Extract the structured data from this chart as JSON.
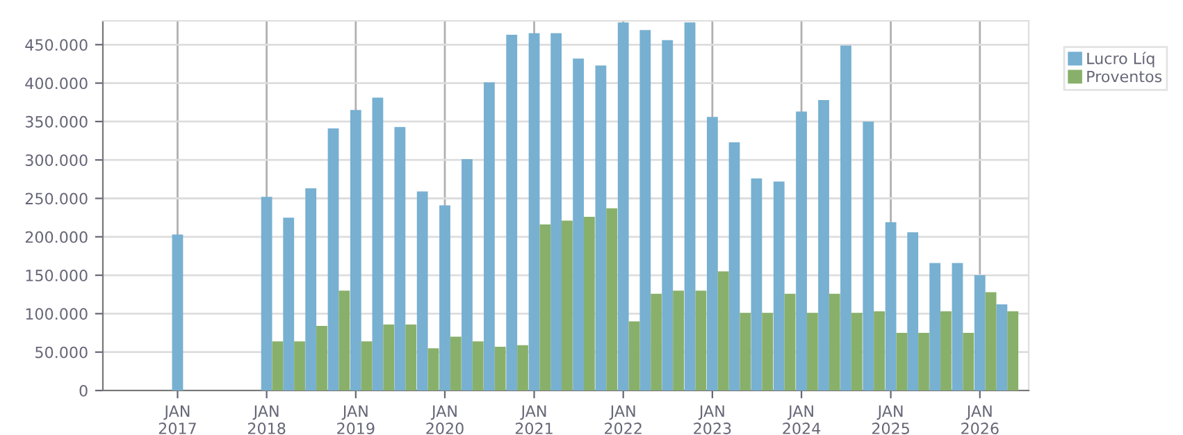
{
  "chart_data": {
    "type": "bar",
    "x": [
      "2017-01",
      "2018-01",
      "2018-04",
      "2018-07",
      "2018-10",
      "2019-01",
      "2019-04",
      "2019-07",
      "2019-10",
      "2020-01",
      "2020-04",
      "2020-07",
      "2020-10",
      "2021-01",
      "2021-04",
      "2021-07",
      "2021-10",
      "2022-01",
      "2022-04",
      "2022-07",
      "2022-10",
      "2023-01",
      "2023-04",
      "2023-07",
      "2023-10",
      "2024-01",
      "2024-04",
      "2024-07",
      "2024-10",
      "2025-01",
      "2025-04",
      "2025-07",
      "2025-10",
      "2026-01",
      "2026-04"
    ],
    "series": [
      {
        "name": "Lucro Líq",
        "color": "#77b0d1",
        "values": [
          203000,
          252000,
          225000,
          263000,
          341000,
          365000,
          381000,
          343000,
          259000,
          241000,
          301000,
          401000,
          463000,
          465000,
          465000,
          432000,
          423000,
          479000,
          469000,
          456000,
          479000,
          356000,
          323000,
          276000,
          272000,
          363000,
          378000,
          449000,
          350000,
          219000,
          206000,
          166000,
          166000,
          150000,
          112000
        ]
      },
      {
        "name": "Proventos",
        "color": "#89b06a",
        "values": [
          null,
          64000,
          64000,
          84000,
          130000,
          64000,
          86000,
          86000,
          55000,
          70000,
          64000,
          57000,
          59000,
          216000,
          221000,
          226000,
          237000,
          90000,
          126000,
          130000,
          130000,
          155000,
          101000,
          101000,
          126000,
          101000,
          126000,
          101000,
          103000,
          75000,
          75000,
          103000,
          75000,
          128000,
          103000
        ]
      }
    ],
    "xlim": [
      "2016-03-01",
      "2026-07-20"
    ],
    "xticks": [
      {
        "value": "2017-01",
        "label": "JAN\n2017"
      },
      {
        "value": "2018-01",
        "label": "JAN\n2018"
      },
      {
        "value": "2019-01",
        "label": "JAN\n2019"
      },
      {
        "value": "2020-01",
        "label": "JAN\n2020"
      },
      {
        "value": "2021-01",
        "label": "JAN\n2021"
      },
      {
        "value": "2022-01",
        "label": "JAN\n2022"
      },
      {
        "value": "2023-01",
        "label": "JAN\n2023"
      },
      {
        "value": "2024-01",
        "label": "JAN\n2024"
      },
      {
        "value": "2025-01",
        "label": "JAN\n2025"
      },
      {
        "value": "2026-01",
        "label": "JAN\n2026"
      }
    ],
    "ylim": [
      0,
      481000
    ],
    "yticks": [
      0,
      {
        "value": 50000,
        "label": "50.000"
      },
      {
        "value": 100000,
        "label": "100.000"
      },
      {
        "value": 150000,
        "label": "150.000"
      },
      {
        "value": 200000,
        "label": "200.000"
      },
      {
        "value": 250000,
        "label": "250.000"
      },
      {
        "value": 300000,
        "label": "300.000"
      },
      {
        "value": 350000,
        "label": "350.000"
      },
      {
        "value": 400000,
        "label": "400.000"
      },
      {
        "value": 450000,
        "label": "450.000"
      }
    ],
    "grid": true,
    "legend": "top right"
  }
}
